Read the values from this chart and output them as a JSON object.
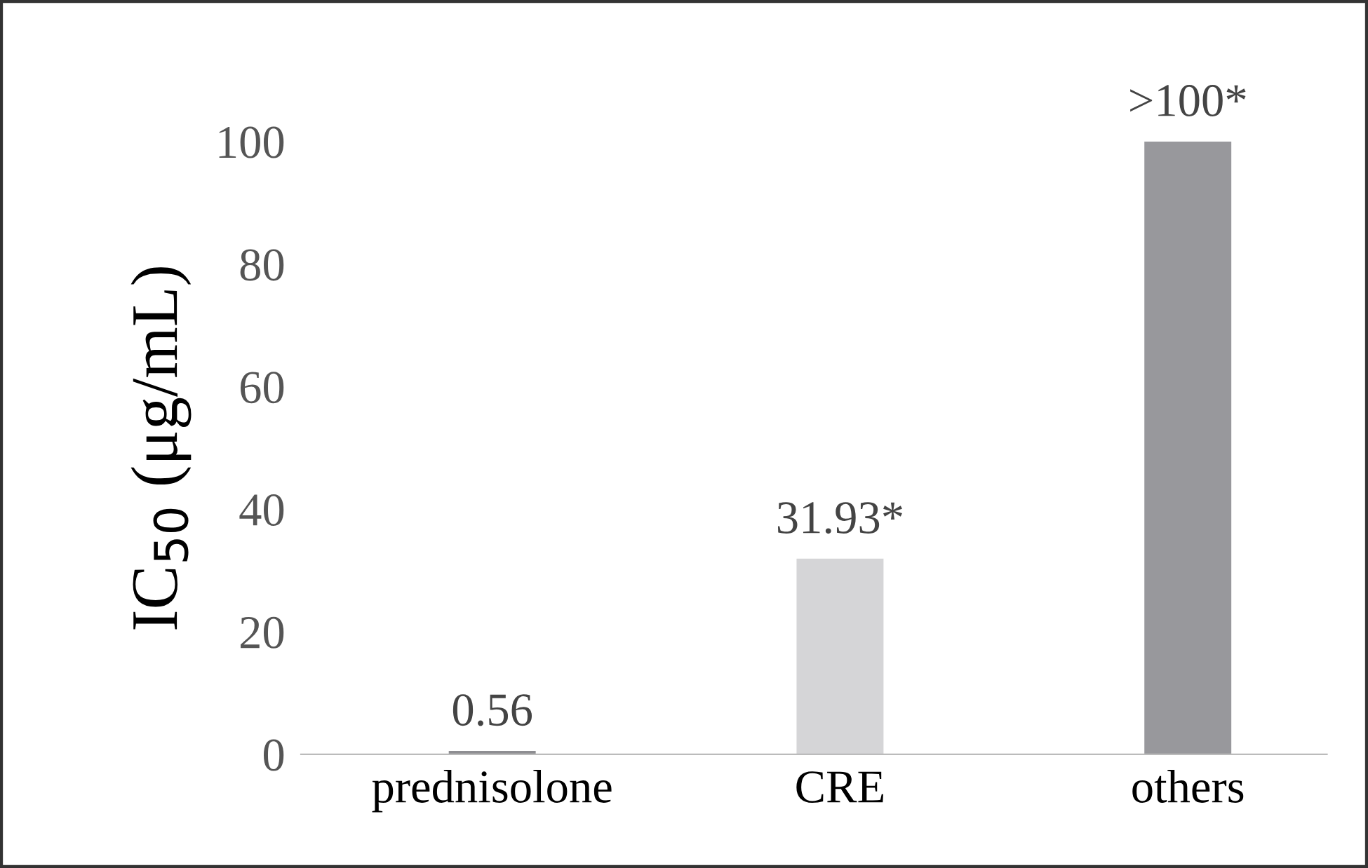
{
  "chart_data": {
    "type": "bar",
    "ylabel": "IC$_{50}$ (μg/mL)",
    "categories": [
      "prednisolone",
      "CRE",
      "others"
    ],
    "values": [
      0.56,
      31.93,
      100
    ],
    "colors": [
      "#8e8e92",
      "#d5d5d7",
      "#98989c"
    ],
    "value_labels": [
      "0.56",
      "31.93*",
      ">100*"
    ],
    "ylim": [
      0,
      100
    ],
    "yticks": [
      0,
      20,
      40,
      60,
      80,
      100
    ],
    "grid": false,
    "legend": false
  }
}
